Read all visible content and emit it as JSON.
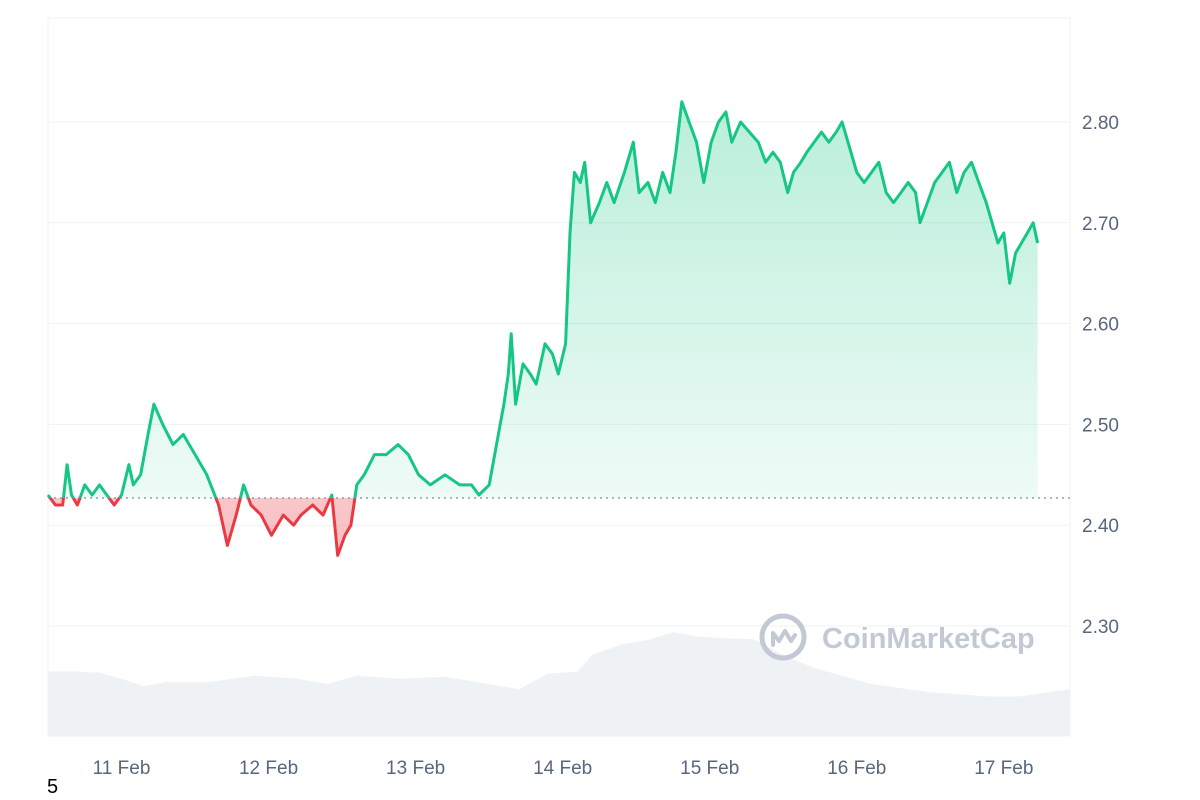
{
  "chart_data": {
    "type": "line",
    "title": "",
    "xlabel": "",
    "ylabel": "",
    "x_ticks": [
      "11 Feb",
      "12 Feb",
      "13 Feb",
      "14 Feb",
      "15 Feb",
      "16 Feb",
      "17 Feb"
    ],
    "y_ticks": [
      "2.30",
      "2.40",
      "2.50",
      "2.60",
      "2.70",
      "2.80"
    ],
    "ylim": [
      2.2,
      2.9
    ],
    "xlim_days": [
      10.5,
      17.45
    ],
    "grid": true,
    "baseline": 2.427,
    "colors": {
      "up": "#16c784",
      "down": "#ea3943",
      "volume": "#eff2f5",
      "grid": "#eff2f5",
      "baseline": "#808a9d"
    },
    "series": [
      {
        "values": [
          [
            10.5,
            2.43
          ],
          [
            10.55,
            2.42
          ],
          [
            10.6,
            2.42
          ],
          [
            10.63,
            2.46
          ],
          [
            10.66,
            2.43
          ],
          [
            10.7,
            2.42
          ],
          [
            10.75,
            2.44
          ],
          [
            10.8,
            2.43
          ],
          [
            10.85,
            2.44
          ],
          [
            10.9,
            2.43
          ],
          [
            10.95,
            2.42
          ],
          [
            11.0,
            2.43
          ],
          [
            11.05,
            2.46
          ],
          [
            11.08,
            2.44
          ],
          [
            11.13,
            2.45
          ],
          [
            11.18,
            2.49
          ],
          [
            11.22,
            2.52
          ],
          [
            11.28,
            2.5
          ],
          [
            11.35,
            2.48
          ],
          [
            11.42,
            2.49
          ],
          [
            11.5,
            2.47
          ],
          [
            11.58,
            2.45
          ],
          [
            11.66,
            2.42
          ],
          [
            11.72,
            2.38
          ],
          [
            11.78,
            2.41
          ],
          [
            11.83,
            2.44
          ],
          [
            11.88,
            2.42
          ],
          [
            11.95,
            2.41
          ],
          [
            12.02,
            2.39
          ],
          [
            12.1,
            2.41
          ],
          [
            12.17,
            2.4
          ],
          [
            12.22,
            2.41
          ],
          [
            12.3,
            2.42
          ],
          [
            12.37,
            2.41
          ],
          [
            12.43,
            2.43
          ],
          [
            12.47,
            2.37
          ],
          [
            12.52,
            2.39
          ],
          [
            12.56,
            2.4
          ],
          [
            12.6,
            2.44
          ],
          [
            12.65,
            2.45
          ],
          [
            12.72,
            2.47
          ],
          [
            12.8,
            2.47
          ],
          [
            12.88,
            2.48
          ],
          [
            12.95,
            2.47
          ],
          [
            13.02,
            2.45
          ],
          [
            13.1,
            2.44
          ],
          [
            13.2,
            2.45
          ],
          [
            13.3,
            2.44
          ],
          [
            13.38,
            2.44
          ],
          [
            13.43,
            2.43
          ],
          [
            13.5,
            2.44
          ],
          [
            13.55,
            2.48
          ],
          [
            13.6,
            2.52
          ],
          [
            13.63,
            2.55
          ],
          [
            13.65,
            2.59
          ],
          [
            13.68,
            2.52
          ],
          [
            13.73,
            2.56
          ],
          [
            13.78,
            2.55
          ],
          [
            13.82,
            2.54
          ],
          [
            13.88,
            2.58
          ],
          [
            13.93,
            2.57
          ],
          [
            13.97,
            2.55
          ],
          [
            14.02,
            2.58
          ],
          [
            14.05,
            2.69
          ],
          [
            14.08,
            2.75
          ],
          [
            14.12,
            2.74
          ],
          [
            14.15,
            2.76
          ],
          [
            14.19,
            2.7
          ],
          [
            14.25,
            2.72
          ],
          [
            14.3,
            2.74
          ],
          [
            14.35,
            2.72
          ],
          [
            14.42,
            2.75
          ],
          [
            14.48,
            2.78
          ],
          [
            14.52,
            2.73
          ],
          [
            14.58,
            2.74
          ],
          [
            14.63,
            2.72
          ],
          [
            14.68,
            2.75
          ],
          [
            14.73,
            2.73
          ],
          [
            14.77,
            2.77
          ],
          [
            14.81,
            2.82
          ],
          [
            14.86,
            2.8
          ],
          [
            14.91,
            2.78
          ],
          [
            14.96,
            2.74
          ],
          [
            15.01,
            2.78
          ],
          [
            15.06,
            2.8
          ],
          [
            15.11,
            2.81
          ],
          [
            15.15,
            2.78
          ],
          [
            15.21,
            2.8
          ],
          [
            15.27,
            2.79
          ],
          [
            15.33,
            2.78
          ],
          [
            15.38,
            2.76
          ],
          [
            15.43,
            2.77
          ],
          [
            15.48,
            2.76
          ],
          [
            15.53,
            2.73
          ],
          [
            15.57,
            2.75
          ],
          [
            15.62,
            2.76
          ],
          [
            15.66,
            2.77
          ],
          [
            15.71,
            2.78
          ],
          [
            15.76,
            2.79
          ],
          [
            15.81,
            2.78
          ],
          [
            15.86,
            2.79
          ],
          [
            15.9,
            2.8
          ],
          [
            15.94,
            2.78
          ],
          [
            16.0,
            2.75
          ],
          [
            16.05,
            2.74
          ],
          [
            16.1,
            2.75
          ],
          [
            16.15,
            2.76
          ],
          [
            16.2,
            2.73
          ],
          [
            16.25,
            2.72
          ],
          [
            16.3,
            2.73
          ],
          [
            16.35,
            2.74
          ],
          [
            16.4,
            2.73
          ],
          [
            16.43,
            2.7
          ],
          [
            16.48,
            2.72
          ],
          [
            16.53,
            2.74
          ],
          [
            16.58,
            2.75
          ],
          [
            16.63,
            2.76
          ],
          [
            16.68,
            2.73
          ],
          [
            16.73,
            2.75
          ],
          [
            16.78,
            2.76
          ],
          [
            16.83,
            2.74
          ],
          [
            16.88,
            2.72
          ],
          [
            16.92,
            2.7
          ],
          [
            16.96,
            2.68
          ],
          [
            17.0,
            2.69
          ],
          [
            17.04,
            2.64
          ],
          [
            17.08,
            2.67
          ],
          [
            17.12,
            2.68
          ],
          [
            17.16,
            2.69
          ],
          [
            17.2,
            2.7
          ],
          [
            17.23,
            2.68
          ]
        ]
      }
    ],
    "volume": [
      [
        10.5,
        0.62
      ],
      [
        10.7,
        0.62
      ],
      [
        10.85,
        0.61
      ],
      [
        11.0,
        0.55
      ],
      [
        11.15,
        0.48
      ],
      [
        11.3,
        0.52
      ],
      [
        11.6,
        0.52
      ],
      [
        11.9,
        0.58
      ],
      [
        12.2,
        0.55
      ],
      [
        12.4,
        0.5
      ],
      [
        12.6,
        0.58
      ],
      [
        12.9,
        0.55
      ],
      [
        13.2,
        0.57
      ],
      [
        13.5,
        0.5
      ],
      [
        13.7,
        0.45
      ],
      [
        13.9,
        0.6
      ],
      [
        14.1,
        0.62
      ],
      [
        14.2,
        0.78
      ],
      [
        14.4,
        0.88
      ],
      [
        14.6,
        0.93
      ],
      [
        14.75,
        1.0
      ],
      [
        14.9,
        0.96
      ],
      [
        15.1,
        0.94
      ],
      [
        15.3,
        0.93
      ],
      [
        15.5,
        0.78
      ],
      [
        15.7,
        0.66
      ],
      [
        15.9,
        0.58
      ],
      [
        16.1,
        0.5
      ],
      [
        16.3,
        0.46
      ],
      [
        16.5,
        0.42
      ],
      [
        16.7,
        0.4
      ],
      [
        16.9,
        0.38
      ],
      [
        17.1,
        0.38
      ],
      [
        17.3,
        0.42
      ],
      [
        17.45,
        0.45
      ]
    ]
  },
  "watermark": {
    "text": "CoinMarketCap",
    "icon": "coinmarketcap-logo-icon"
  },
  "corner_label": "5"
}
